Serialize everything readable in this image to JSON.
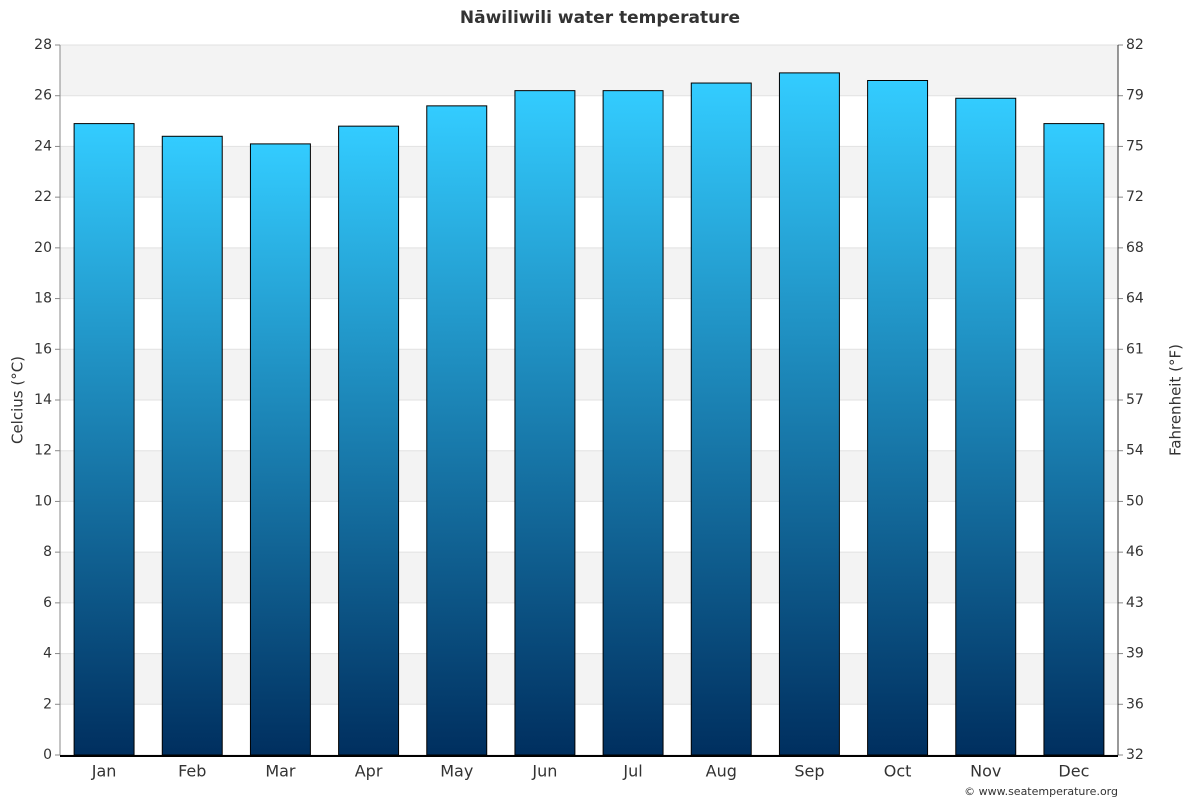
{
  "chart_data": {
    "type": "bar",
    "title": "Nāwiliwili water temperature",
    "y_label": "Celcius (°C)",
    "y2_label": "Fahrenheit (°F)",
    "categories": [
      "Jan",
      "Feb",
      "Mar",
      "Apr",
      "May",
      "Jun",
      "Jul",
      "Aug",
      "Sep",
      "Oct",
      "Nov",
      "Dec"
    ],
    "values": [
      24.9,
      24.4,
      24.1,
      24.8,
      25.6,
      26.2,
      26.2,
      26.5,
      26.9,
      26.6,
      25.9,
      24.9
    ],
    "gradient": [
      "#33ccff",
      "#002f5f"
    ],
    "ylim": [
      0,
      28
    ],
    "yticks": [
      0,
      2,
      4,
      6,
      8,
      10,
      12,
      14,
      16,
      18,
      20,
      22,
      24,
      26,
      28
    ],
    "y2lim": [
      32,
      82.4
    ],
    "y2ticks": [
      32,
      {
        "value": 35.6,
        "label": "36"
      },
      {
        "value": 39.2,
        "label": "39"
      },
      {
        "value": 42.8,
        "label": "43"
      },
      {
        "value": 46.4,
        "label": "46"
      },
      50,
      {
        "value": 53.6,
        "label": "54"
      },
      {
        "value": 57.2,
        "label": "57"
      },
      {
        "value": 60.8,
        "label": "61"
      },
      {
        "value": 64.4,
        "label": "64"
      },
      68,
      {
        "value": 71.6,
        "label": "72"
      },
      {
        "value": 75.2,
        "label": "75"
      },
      {
        "value": 78.8,
        "label": "79"
      },
      {
        "value": 82.4,
        "label": "82"
      }
    ],
    "grid": true,
    "source": "© www.seatemperature.org"
  }
}
